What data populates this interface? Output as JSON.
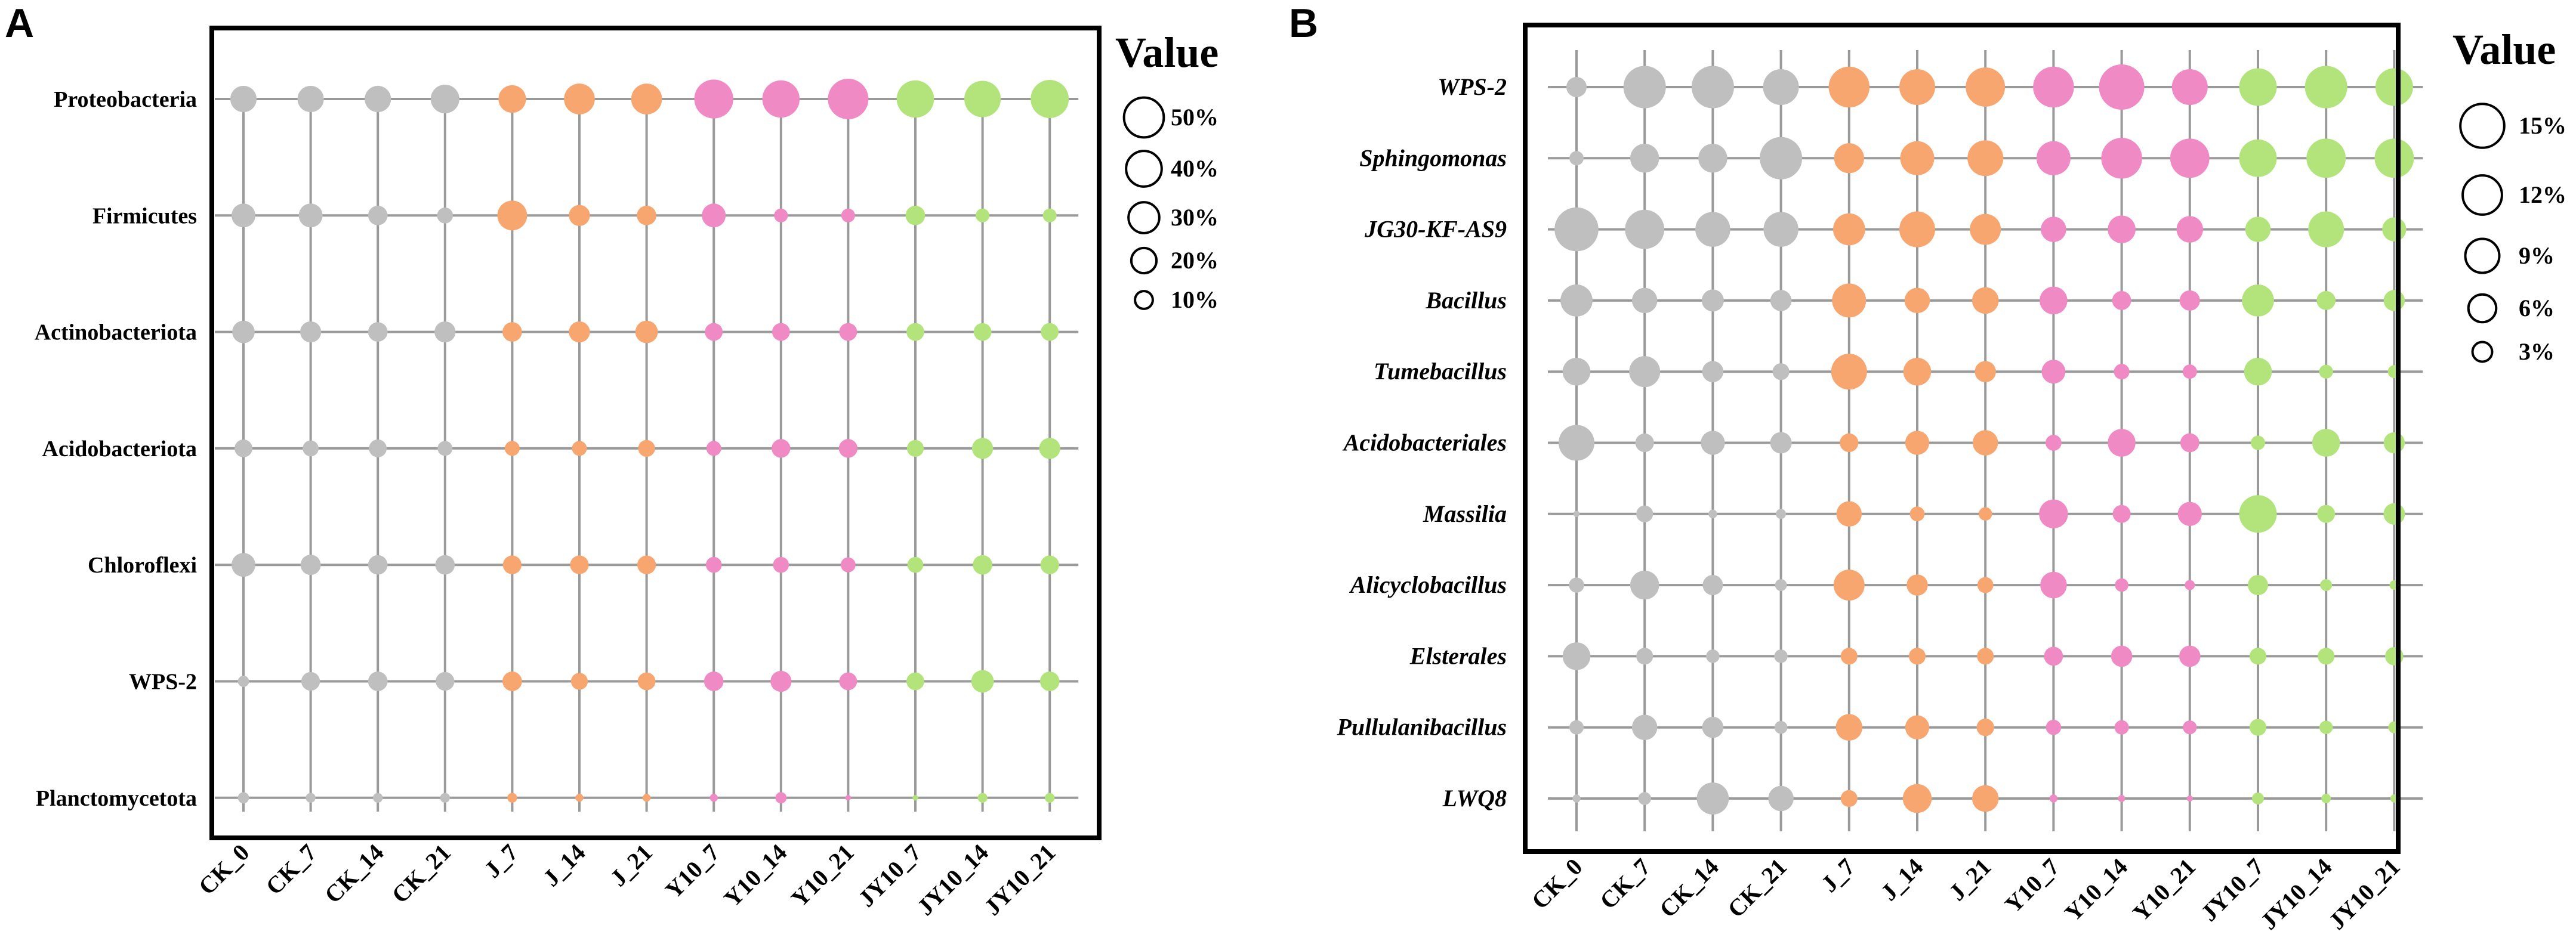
{
  "figure": {
    "panels": [
      "A",
      "B"
    ]
  },
  "colors": {
    "CK": "#bfbfbf",
    "J": "#f8a670",
    "Y10": "#ef8ac4",
    "JY10": "#b3e47c",
    "grid": "#9a9a9a",
    "frame": "#000000"
  },
  "chart_data": [
    {
      "panel": "A",
      "type": "scatter",
      "subtype": "bubble",
      "title": "",
      "legend_title": "Value",
      "legend": [
        {
          "label": "50%",
          "value": 50
        },
        {
          "label": "40%",
          "value": 40
        },
        {
          "label": "30%",
          "value": 30
        },
        {
          "label": "20%",
          "value": 20
        },
        {
          "label": "10%",
          "value": 10
        }
      ],
      "legend_position": "right",
      "italic_rows": false,
      "categories": [
        "CK_0",
        "CK_7",
        "CK_14",
        "CK_21",
        "J_7",
        "J_14",
        "J_21",
        "Y10_7",
        "Y10_14",
        "Y10_21",
        "JY10_7",
        "JY10_14",
        "JY10_21"
      ],
      "groups": [
        "CK",
        "CK",
        "CK",
        "CK",
        "J",
        "J",
        "J",
        "Y10",
        "Y10",
        "Y10",
        "JY10",
        "JY10",
        "JY10"
      ],
      "rows": [
        "Proteobacteria",
        "Firmicutes",
        "Actinobacteriota",
        "Acidobacteriota",
        "Chloroflexi",
        "WPS-2",
        "Planctomycetota"
      ],
      "values": [
        [
          22,
          22,
          22,
          26,
          24,
          30,
          30,
          48,
          44,
          52,
          44,
          42,
          46
        ],
        [
          18,
          18,
          12,
          8,
          28,
          14,
          12,
          18,
          6,
          6,
          12,
          6,
          6
        ],
        [
          16,
          14,
          12,
          14,
          12,
          14,
          16,
          10,
          10,
          10,
          10,
          10,
          10
        ],
        [
          10,
          8,
          10,
          7,
          7,
          7,
          9,
          7,
          11,
          11,
          9,
          14,
          14
        ],
        [
          18,
          13,
          12,
          12,
          11,
          11,
          11,
          8,
          8,
          7,
          8,
          12,
          11
        ],
        [
          4,
          11,
          12,
          11,
          12,
          9,
          10,
          12,
          14,
          10,
          10,
          16,
          12
        ],
        [
          4,
          3,
          3,
          3,
          3,
          2,
          2,
          2,
          4,
          1,
          1,
          3,
          3
        ]
      ]
    },
    {
      "panel": "B",
      "type": "scatter",
      "subtype": "bubble",
      "title": "",
      "legend_title": "Value",
      "legend": [
        {
          "label": "15%",
          "value": 15
        },
        {
          "label": "12%",
          "value": 12
        },
        {
          "label": "9%",
          "value": 9
        },
        {
          "label": "6%",
          "value": 6
        },
        {
          "label": "3%",
          "value": 3
        }
      ],
      "legend_position": "right",
      "italic_rows": true,
      "categories": [
        "CK_0",
        "CK_7",
        "CK_14",
        "CK_21",
        "J_7",
        "J_14",
        "J_21",
        "Y10_7",
        "Y10_14",
        "Y10_21",
        "JY10_7",
        "JY10_14",
        "JY10_21"
      ],
      "groups": [
        "CK",
        "CK",
        "CK",
        "CK",
        "J",
        "J",
        "J",
        "Y10",
        "Y10",
        "Y10",
        "JY10",
        "JY10",
        "JY10"
      ],
      "rows": [
        "WPS-2",
        "Sphingomonas",
        "JG30-KF-AS9",
        "Bacillus",
        "Tumebacillus",
        "Acidobacteriales",
        "Massilia",
        "Alicyclobacillus",
        "Elsterales",
        "Pullulanibacillus",
        "LWQ8"
      ],
      "values": [
        [
          3.2,
          14,
          14,
          10,
          13,
          10,
          12,
          13,
          16,
          10,
          11,
          14,
          11
        ],
        [
          1.6,
          6.5,
          6.5,
          14,
          7,
          9,
          10,
          9,
          13,
          12,
          11,
          12,
          12
        ],
        [
          15,
          12,
          9.5,
          9.5,
          8,
          10,
          7.5,
          5,
          6,
          5.5,
          5,
          10,
          4.5
        ],
        [
          8,
          5,
          3.8,
          3.5,
          9,
          5,
          5.5,
          6,
          2.8,
          3.2,
          8,
          2.8,
          3.5
        ],
        [
          6,
          7.5,
          3.5,
          2.2,
          10,
          6,
          3.5,
          4.4,
          1.9,
          1.6,
          6,
          1.5,
          1.3
        ],
        [
          10,
          2.7,
          4.5,
          3.6,
          2.7,
          4.5,
          5,
          2,
          6,
          2.8,
          1.6,
          6,
          3.5
        ],
        [
          0.3,
          2.2,
          0.6,
          0.8,
          5,
          1.7,
          1.4,
          6.5,
          2.5,
          4.5,
          11,
          2.5,
          3.6
        ],
        [
          1.8,
          6.5,
          3.2,
          1.1,
          7.5,
          3.5,
          2,
          5.5,
          1.4,
          0.8,
          3.2,
          1.1,
          0.7
        ],
        [
          6,
          2.2,
          1.4,
          1.4,
          2.2,
          2.2,
          2.2,
          2.8,
          3.5,
          3.5,
          2.2,
          2.2,
          2.6
        ],
        [
          1.6,
          5,
          3.5,
          1.3,
          5.5,
          4.5,
          2.4,
          1.8,
          1.6,
          1.5,
          2.2,
          1.4,
          1.1
        ],
        [
          0.5,
          1.3,
          8,
          5,
          2.2,
          6.5,
          5.5,
          0.5,
          0.4,
          0.3,
          1.1,
          0.7,
          0.5
        ]
      ]
    }
  ]
}
